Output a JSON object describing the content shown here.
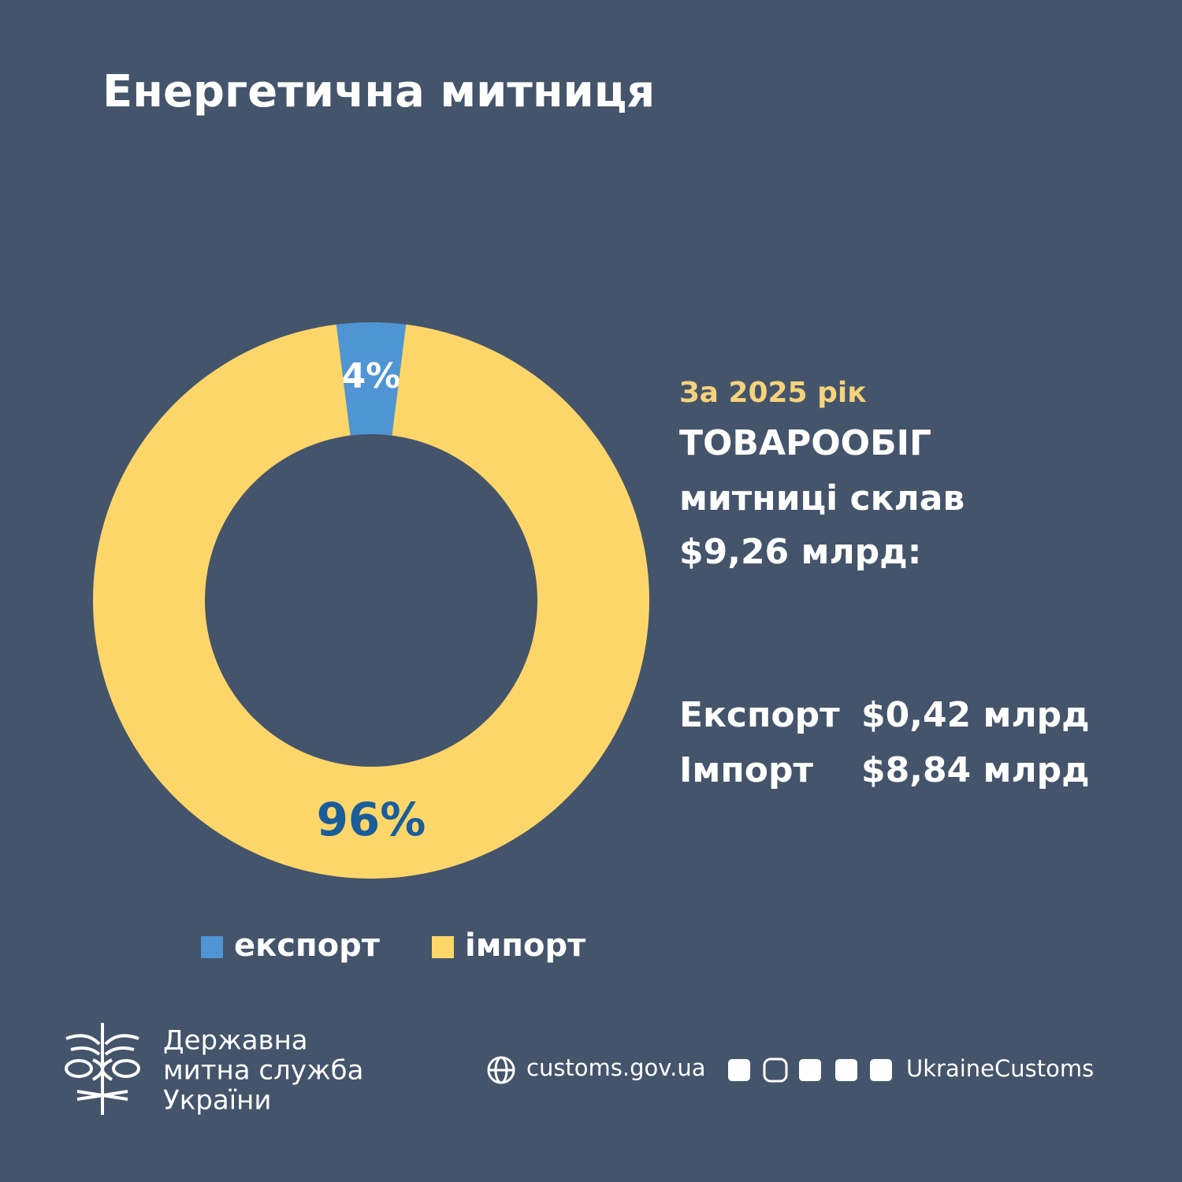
{
  "chart_data": {
    "type": "donut",
    "title": "Енергетична митниця",
    "categories": [
      "експорт",
      "імпорт"
    ],
    "values": [
      4,
      96
    ],
    "value_labels": [
      "4%",
      "96%"
    ],
    "colors": [
      "#4f95d4",
      "#fdd66a"
    ]
  },
  "summary": {
    "period": "За 2025 рік",
    "headline": [
      "ТОВАРООБІГ",
      "митниці склав",
      "$9,26 млрд:"
    ],
    "rows": [
      [
        "Експорт",
        "$0,42 млрд"
      ],
      [
        "Імпорт",
        "$8,84 млрд"
      ]
    ]
  },
  "footer": {
    "organization": [
      "Державна",
      "митна служба",
      "України"
    ],
    "website": "customs.gov.ua",
    "handle": "UkraineCustoms"
  }
}
